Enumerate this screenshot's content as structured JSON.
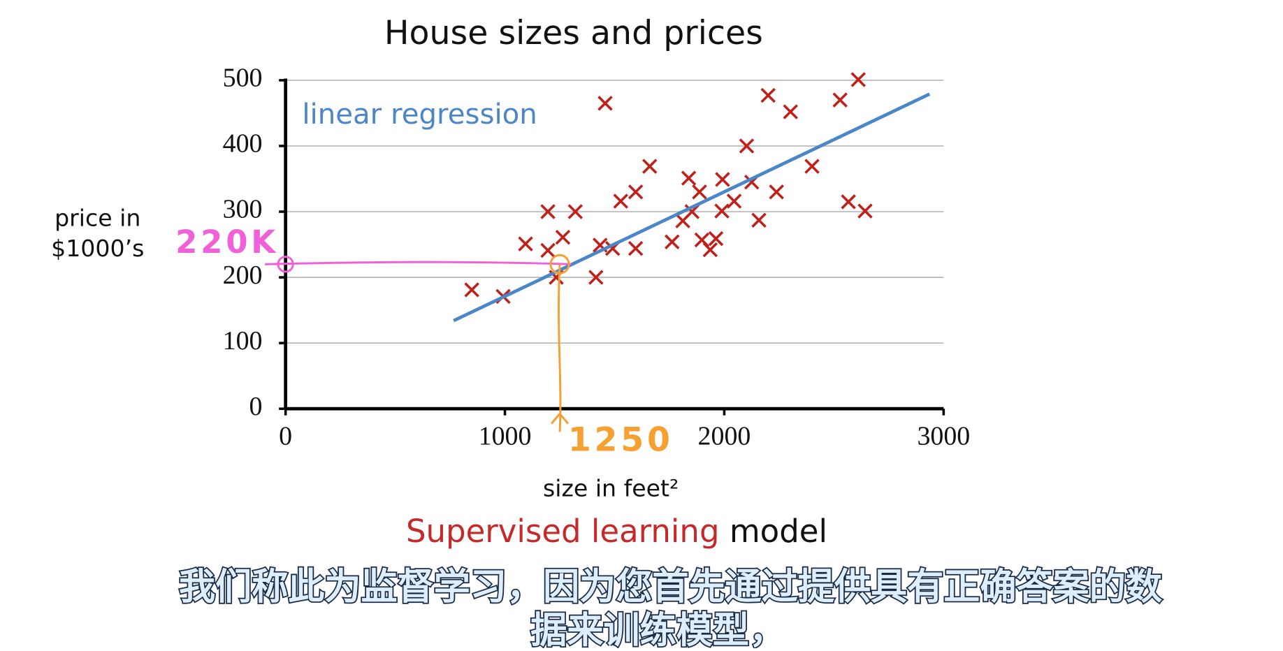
{
  "chart_data": {
    "type": "scatter",
    "title": "House sizes and prices",
    "xlabel": "size in feet²",
    "ylabel": [
      "price in",
      "$1000’s"
    ],
    "x": [
      849,
      992,
      1094,
      1196,
      1196,
      1234,
      1264,
      1321,
      1415,
      1434,
      1491,
      1457,
      1528,
      1596,
      1596,
      1660,
      1762,
      1811,
      1838,
      1853,
      1887,
      1898,
      1936,
      1962,
      1992,
      1989,
      2045,
      2102,
      2125,
      2158,
      2200,
      2238,
      2302,
      2400,
      2528,
      2566,
      2611,
      2642
    ],
    "values": [
      181,
      171,
      251,
      300,
      241,
      200,
      261,
      300,
      200,
      249,
      244,
      465,
      316,
      330,
      244,
      369,
      254,
      286,
      351,
      300,
      330,
      257,
      242,
      259,
      349,
      301,
      316,
      400,
      345,
      287,
      477,
      330,
      452,
      369,
      470,
      315,
      501,
      301
    ],
    "color": "#c0201a",
    "line": {
      "label": "linear regression",
      "x": [
        766,
        2936
      ],
      "y": [
        134,
        479
      ],
      "color": "#4a86c8"
    },
    "annotations": [
      {
        "text": "220K",
        "axis": "y",
        "value": 220,
        "color": "#f060d8"
      },
      {
        "text": "1250",
        "axis": "x",
        "value": 1250,
        "color": "#f5a030"
      }
    ],
    "xlim": [
      0,
      3000
    ],
    "xticks": [
      0,
      1000,
      2000,
      3000
    ],
    "ylim": [
      0,
      500
    ],
    "yticks": [
      0,
      100,
      200,
      300,
      400,
      500
    ],
    "grid": true
  },
  "caption": {
    "highlight": "Supervised learning",
    "rest": "model"
  },
  "subtitles": [
    "我们称此为监督学习，因为您首先通过提供具有正确答案的数",
    "据来训练模型，"
  ]
}
